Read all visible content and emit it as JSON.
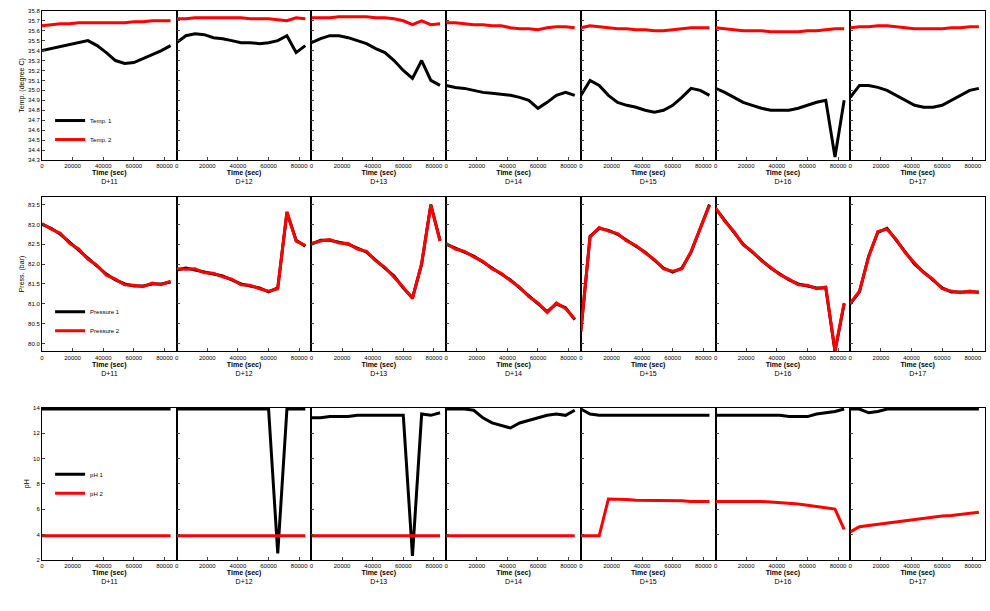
{
  "chart_data": [
    {
      "type": "line",
      "xlabel": "Time (sec)",
      "ylabel": "Temp. (degree C)",
      "panels": [
        "D+11",
        "D+12",
        "D+13",
        "D+14",
        "D+15",
        "D+16",
        "D+17"
      ],
      "x": [
        0,
        6000,
        12000,
        18000,
        24000,
        30000,
        36000,
        42000,
        48000,
        54000,
        60000,
        66000,
        72000,
        78000,
        84000
      ],
      "xlim": [
        0,
        88000
      ],
      "xticks": [
        0,
        20000,
        40000,
        60000,
        80000
      ],
      "ylim": [
        34.3,
        35.8
      ],
      "yticks": [
        34.3,
        34.4,
        34.5,
        34.6,
        34.7,
        34.8,
        34.9,
        {
          "value": 35,
          "label": "35.0"
        },
        35.1,
        35.2,
        35.3,
        35.4,
        35.5,
        35.6,
        35.7,
        35.8
      ],
      "grid": false,
      "legend": "lower left",
      "series": [
        {
          "name": "Temp. 1",
          "color": "#000000",
          "values": [
            [
              35.4,
              35.42,
              35.44,
              35.46,
              35.48,
              35.5,
              35.45,
              35.38,
              35.3,
              35.27,
              35.28,
              35.32,
              35.36,
              35.4,
              35.45
            ],
            [
              35.48,
              35.55,
              35.57,
              35.56,
              35.53,
              35.52,
              35.5,
              35.48,
              35.48,
              35.47,
              35.48,
              35.5,
              35.55,
              35.38,
              35.45
            ],
            [
              35.48,
              35.52,
              35.55,
              35.55,
              35.53,
              35.5,
              35.47,
              35.42,
              35.38,
              35.3,
              35.2,
              35.12,
              35.3,
              35.1,
              35.05
            ],
            [
              35.05,
              35.03,
              35.02,
              35.0,
              34.98,
              34.97,
              34.96,
              34.95,
              34.93,
              34.9,
              34.82,
              34.88,
              34.95,
              34.98,
              34.95
            ],
            [
              34.95,
              35.1,
              35.05,
              34.95,
              34.88,
              34.85,
              34.83,
              34.8,
              34.78,
              34.8,
              34.85,
              34.93,
              35.02,
              35.0,
              34.95
            ],
            [
              35.02,
              34.98,
              34.93,
              34.88,
              34.85,
              34.82,
              34.8,
              34.8,
              34.8,
              34.82,
              34.85,
              34.88,
              34.9,
              34.33,
              34.9
            ],
            [
              34.93,
              35.05,
              35.05,
              35.03,
              35.0,
              34.95,
              34.9,
              34.85,
              34.83,
              34.83,
              34.85,
              34.9,
              34.95,
              35.0,
              35.02
            ]
          ]
        },
        {
          "name": "Temp. 2",
          "color": "#ff0000",
          "values": [
            [
              35.65,
              35.66,
              35.67,
              35.67,
              35.68,
              35.68,
              35.68,
              35.68,
              35.68,
              35.68,
              35.69,
              35.69,
              35.7,
              35.7,
              35.7
            ],
            [
              35.72,
              35.72,
              35.73,
              35.73,
              35.73,
              35.73,
              35.73,
              35.73,
              35.72,
              35.72,
              35.72,
              35.71,
              35.7,
              35.73,
              35.72
            ],
            [
              35.73,
              35.73,
              35.73,
              35.74,
              35.74,
              35.74,
              35.74,
              35.73,
              35.73,
              35.72,
              35.7,
              35.66,
              35.7,
              35.66,
              35.67
            ],
            [
              35.68,
              35.68,
              35.67,
              35.66,
              35.66,
              35.65,
              35.65,
              35.63,
              35.62,
              35.62,
              35.61,
              35.63,
              35.64,
              35.64,
              35.63
            ],
            [
              35.63,
              35.65,
              35.64,
              35.63,
              35.62,
              35.62,
              35.61,
              35.61,
              35.6,
              35.6,
              35.61,
              35.62,
              35.63,
              35.63,
              35.63
            ],
            [
              35.63,
              35.62,
              35.61,
              35.6,
              35.6,
              35.6,
              35.59,
              35.59,
              35.59,
              35.59,
              35.6,
              35.6,
              35.61,
              35.62,
              35.62
            ],
            [
              35.63,
              35.64,
              35.64,
              35.65,
              35.65,
              35.64,
              35.63,
              35.62,
              35.62,
              35.62,
              35.62,
              35.63,
              35.63,
              35.64,
              35.64
            ]
          ]
        }
      ]
    },
    {
      "type": "line",
      "xlabel": "Time (sec)",
      "ylabel": "Press. (bar)",
      "panels": [
        "D+11",
        "D+12",
        "D+13",
        "D+14",
        "D+15",
        "D+16",
        "D+17"
      ],
      "x": [
        0,
        6000,
        12000,
        18000,
        24000,
        30000,
        36000,
        42000,
        48000,
        54000,
        60000,
        66000,
        72000,
        78000,
        84000
      ],
      "xlim": [
        0,
        88000
      ],
      "xticks": [
        0,
        20000,
        40000,
        60000,
        80000
      ],
      "ylim": [
        79.8,
        83.7
      ],
      "yticks": [
        {
          "value": 80,
          "label": "80.0"
        },
        80.5,
        {
          "value": 81,
          "label": "81.0"
        },
        81.5,
        {
          "value": 82,
          "label": "82.0"
        },
        82.5,
        {
          "value": 83,
          "label": "83.0"
        },
        83.5
      ],
      "grid": false,
      "legend": "lower left",
      "series": [
        {
          "name": "Pressure 1",
          "color": "#000000",
          "values": [
            [
              83.0,
              82.9,
              82.75,
              82.55,
              82.35,
              82.15,
              81.95,
              81.75,
              81.6,
              81.5,
              81.45,
              81.45,
              81.5,
              81.5,
              81.55
            ],
            [
              81.85,
              81.9,
              81.85,
              81.8,
              81.75,
              81.7,
              81.6,
              81.5,
              81.45,
              81.4,
              81.3,
              81.4,
              83.3,
              82.6,
              82.45
            ],
            [
              82.5,
              82.6,
              82.6,
              82.55,
              82.5,
              82.4,
              82.3,
              82.1,
              81.9,
              81.7,
              81.4,
              81.15,
              82.0,
              83.5,
              82.6
            ],
            [
              82.5,
              82.4,
              82.3,
              82.2,
              82.05,
              81.9,
              81.75,
              81.6,
              81.4,
              81.2,
              81.0,
              80.8,
              81.0,
              80.9,
              80.6
            ],
            [
              80.3,
              82.7,
              82.9,
              82.85,
              82.75,
              82.6,
              82.45,
              82.3,
              82.1,
              81.9,
              81.8,
              81.9,
              82.3,
              82.9,
              83.5
            ],
            [
              83.4,
              83.1,
              82.8,
              82.5,
              82.3,
              82.1,
              81.9,
              81.75,
              81.6,
              81.5,
              81.45,
              81.4,
              81.4,
              79.8,
              81.0
            ],
            [
              81.0,
              81.3,
              82.2,
              82.8,
              82.9,
              82.6,
              82.3,
              82.0,
              81.8,
              81.6,
              81.4,
              81.3,
              81.3,
              81.3,
              81.3
            ]
          ]
        },
        {
          "name": "Pressure 2",
          "color": "#ff0000",
          "values": [
            [
              83.02,
              82.88,
              82.78,
              82.52,
              82.38,
              82.12,
              81.97,
              81.72,
              81.62,
              81.48,
              81.47,
              81.43,
              81.52,
              81.48,
              81.57
            ],
            [
              81.88,
              81.87,
              81.88,
              81.78,
              81.77,
              81.68,
              81.62,
              81.48,
              81.47,
              81.38,
              81.32,
              81.38,
              83.32,
              82.58,
              82.47
            ],
            [
              82.52,
              82.58,
              82.62,
              82.53,
              82.52,
              82.38,
              82.32,
              82.08,
              81.92,
              81.68,
              81.42,
              81.13,
              82.02,
              83.48,
              82.58
            ],
            [
              82.52,
              82.38,
              82.32,
              82.18,
              82.07,
              81.88,
              81.77,
              81.58,
              81.42,
              81.18,
              81.02,
              80.78,
              81.02,
              80.88,
              80.62
            ],
            [
              80.32,
              82.68,
              82.92,
              82.83,
              82.77,
              82.58,
              82.47,
              82.28,
              82.12,
              81.88,
              81.82,
              81.88,
              82.32,
              82.88,
              83.48
            ],
            [
              83.42,
              83.08,
              82.82,
              82.48,
              82.32,
              82.08,
              81.92,
              81.73,
              81.62,
              81.48,
              81.47,
              81.38,
              81.42,
              79.82,
              81.02
            ],
            [
              81.02,
              81.32,
              82.18,
              82.82,
              82.88,
              82.62,
              82.28,
              82.02,
              81.78,
              81.62,
              81.38,
              81.32,
              81.28,
              81.32,
              81.28
            ]
          ]
        }
      ]
    },
    {
      "type": "line",
      "xlabel": "Time (sec)",
      "ylabel": "pH",
      "panels": [
        "D+11",
        "D+12",
        "D+13",
        "D+14",
        "D+15",
        "D+16",
        "D+17"
      ],
      "x": [
        0,
        6000,
        12000,
        18000,
        24000,
        30000,
        36000,
        42000,
        48000,
        54000,
        60000,
        66000,
        72000,
        78000,
        84000
      ],
      "xlim": [
        0,
        88000
      ],
      "xticks": [
        0,
        20000,
        40000,
        60000,
        80000
      ],
      "ylim": [
        2,
        14
      ],
      "yticks": [
        2,
        4,
        6,
        8,
        10,
        12,
        14
      ],
      "grid": false,
      "legend": "center left",
      "series": [
        {
          "name": "pH 1",
          "color": "#000000",
          "values": [
            [
              13.9,
              13.9,
              13.9,
              13.9,
              13.9,
              13.9,
              13.9,
              13.9,
              13.9,
              13.9,
              13.9,
              13.9,
              13.9,
              13.9,
              13.9
            ],
            [
              13.9,
              13.9,
              13.9,
              13.9,
              13.9,
              13.9,
              13.9,
              13.9,
              13.9,
              13.9,
              13.9,
              2.5,
              13.9,
              13.9,
              13.9
            ],
            [
              13.2,
              13.2,
              13.3,
              13.3,
              13.3,
              13.4,
              13.4,
              13.4,
              13.4,
              13.4,
              13.4,
              2.3,
              13.5,
              13.4,
              13.6
            ],
            [
              13.9,
              13.9,
              13.9,
              13.8,
              13.2,
              12.8,
              12.6,
              12.4,
              12.8,
              13.0,
              13.2,
              13.4,
              13.5,
              13.4,
              13.8
            ],
            [
              13.9,
              13.5,
              13.4,
              13.4,
              13.4,
              13.4,
              13.4,
              13.4,
              13.4,
              13.4,
              13.4,
              13.4,
              13.4,
              13.4,
              13.4
            ],
            [
              13.4,
              13.4,
              13.4,
              13.4,
              13.4,
              13.4,
              13.4,
              13.4,
              13.3,
              13.3,
              13.3,
              13.5,
              13.6,
              13.7,
              13.9
            ],
            [
              13.9,
              13.9,
              13.6,
              13.7,
              13.9,
              13.9,
              13.9,
              13.9,
              13.9,
              13.9,
              13.9,
              13.9,
              13.9,
              13.9,
              13.9
            ]
          ]
        },
        {
          "name": "pH 2",
          "color": "#ff0000",
          "values": [
            [
              3.9,
              3.9,
              3.9,
              3.9,
              3.9,
              3.9,
              3.9,
              3.9,
              3.9,
              3.9,
              3.9,
              3.9,
              3.9,
              3.9,
              3.9
            ],
            [
              3.9,
              3.9,
              3.9,
              3.9,
              3.9,
              3.9,
              3.9,
              3.9,
              3.9,
              3.9,
              3.9,
              3.9,
              3.9,
              3.9,
              3.9
            ],
            [
              3.9,
              3.9,
              3.9,
              3.9,
              3.9,
              3.9,
              3.9,
              3.9,
              3.9,
              3.9,
              3.9,
              3.9,
              3.9,
              3.9,
              3.9
            ],
            [
              3.9,
              3.9,
              3.9,
              3.9,
              3.9,
              3.9,
              3.9,
              3.9,
              3.9,
              3.9,
              3.9,
              3.9,
              3.9,
              3.9,
              3.9
            ],
            [
              3.9,
              3.9,
              3.9,
              6.8,
              6.8,
              6.75,
              6.7,
              6.7,
              6.7,
              6.65,
              6.65,
              6.65,
              6.6,
              6.6,
              6.6
            ],
            [
              6.6,
              6.6,
              6.65,
              6.65,
              6.6,
              6.6,
              6.55,
              6.5,
              6.5,
              6.4,
              6.3,
              6.2,
              6.1,
              6.0,
              4.4
            ],
            [
              4.2,
              4.6,
              4.7,
              4.8,
              4.9,
              5.0,
              5.1,
              5.2,
              5.3,
              5.35,
              5.45,
              5.5,
              5.6,
              5.7,
              5.75
            ]
          ]
        }
      ]
    }
  ]
}
